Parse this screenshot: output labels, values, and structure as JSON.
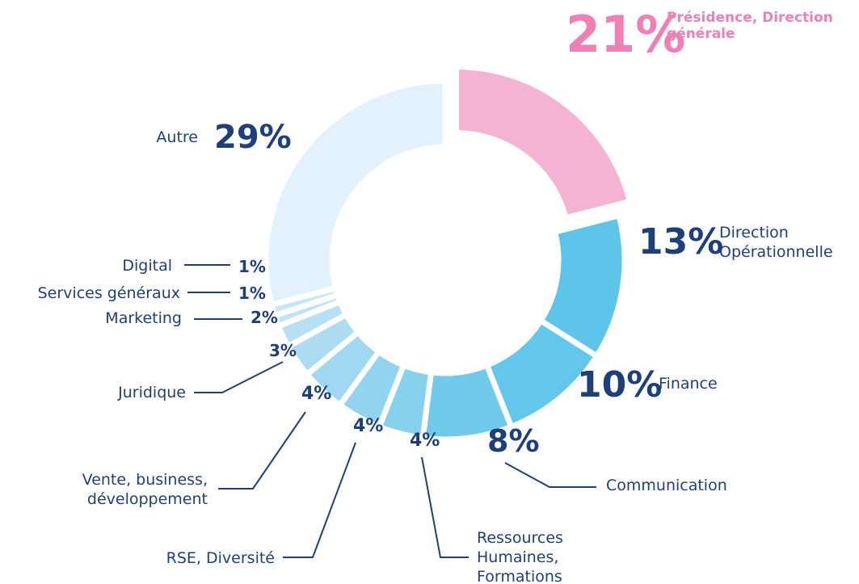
{
  "chart_data": {
    "type": "donut",
    "categories": [
      "Présidence, Direction générale",
      "Direction Opérationnelle",
      "Finance",
      "Communication",
      "Ressources Humaines, Formations",
      "RSE, Diversité",
      "Vente, business, développement",
      "Juridique",
      "Marketing",
      "Services généraux",
      "Digital",
      "Autre"
    ],
    "values": [
      21,
      13,
      10,
      8,
      4,
      4,
      4,
      3,
      2,
      1,
      1,
      29
    ],
    "value_labels": [
      "21%",
      "13%",
      "10%",
      "8%",
      "4%",
      "4%",
      "4%",
      "3%",
      "2%",
      "1%",
      "1%",
      "29%"
    ],
    "colors": [
      "#f4b3d2",
      "#5ec5ea",
      "#63c6eb",
      "#6fcaec",
      "#86d1ee",
      "#92d4ef",
      "#9fd8f0",
      "#acdcf1",
      "#b6e0f3",
      "#c0e4f4",
      "#c8e7f5",
      "#e2f1fb"
    ]
  }
}
